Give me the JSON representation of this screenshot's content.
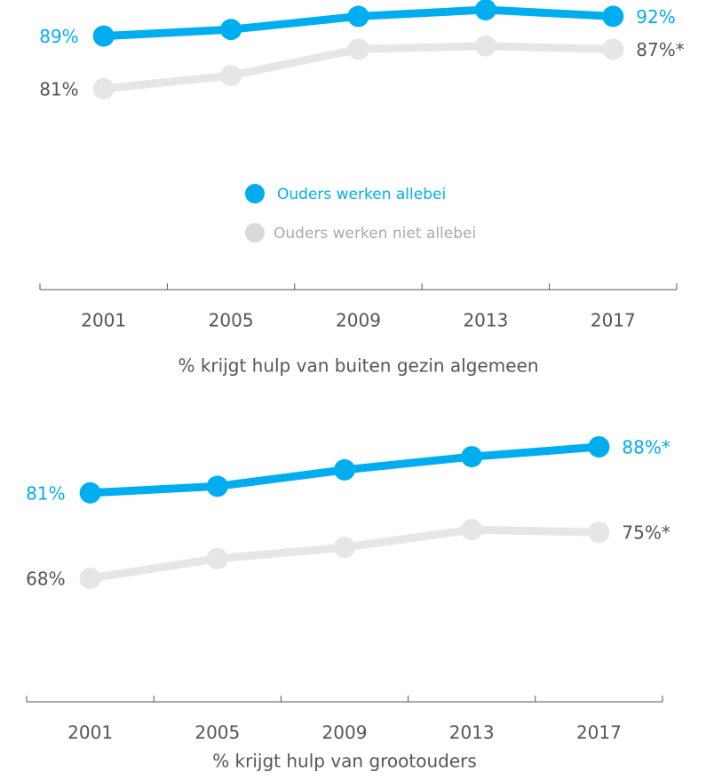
{
  "chart_data": [
    {
      "type": "line",
      "x_label": "% krijgt hulp van buiten gezin algemeen",
      "categories": [
        "2001",
        "2005",
        "2009",
        "2013",
        "2017"
      ],
      "legend": true,
      "series": [
        {
          "name": "Ouders werken allebei",
          "color": "#00aeef",
          "label_color": "#00aeef",
          "values": [
            89,
            90,
            92,
            93,
            92
          ],
          "value_labels": [
            "89%",
            null,
            null,
            null,
            "92%"
          ]
        },
        {
          "name": "Ouders werken niet allebei",
          "color": "#e6e6e6",
          "label_color": "#555555",
          "values": [
            81,
            83,
            87,
            87.5,
            87
          ],
          "value_labels": [
            "81%",
            null,
            null,
            null,
            "87%*"
          ]
        }
      ]
    },
    {
      "type": "line",
      "x_label": "% krijgt hulp van grootouders",
      "categories": [
        "2001",
        "2005",
        "2009",
        "2013",
        "2017"
      ],
      "legend": false,
      "series": [
        {
          "color": "#00aeef",
          "label_color": "#00aeef",
          "values": [
            81,
            82,
            84.5,
            86.5,
            88
          ],
          "value_labels": [
            "81%",
            null,
            null,
            null,
            "88%*"
          ]
        },
        {
          "color": "#e6e6e6",
          "label_color": "#555555",
          "values": [
            68,
            71,
            72.7,
            75.4,
            75
          ],
          "value_labels": [
            "68%",
            null,
            null,
            null,
            "75%*"
          ]
        }
      ]
    }
  ]
}
